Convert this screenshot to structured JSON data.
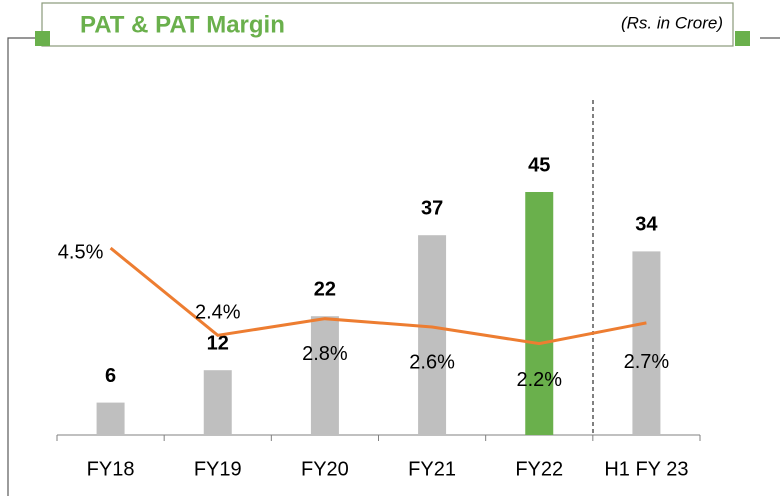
{
  "header": {
    "title": "PAT & PAT Margin",
    "subtitle": "(Rs. in Crore)"
  },
  "chart_data": {
    "type": "bar_line",
    "categories": [
      "FY18",
      "FY19",
      "FY20",
      "FY21",
      "FY22",
      "H1 FY 23"
    ],
    "series": [
      {
        "type": "bar",
        "values": [
          6,
          12,
          22,
          37,
          45,
          34
        ],
        "colors": [
          "#bfbfbf",
          "#bfbfbf",
          "#bfbfbf",
          "#bfbfbf",
          "#6ab04c",
          "#bfbfbf"
        ]
      },
      {
        "type": "line",
        "axis": "y2",
        "color": "#ed7d31",
        "values": [
          4.5,
          2.4,
          2.8,
          2.6,
          2.2,
          2.7
        ],
        "value_labels": [
          "4.5%",
          "2.4%",
          "2.8%",
          "2.6%",
          "2.2%",
          "2.7%"
        ]
      }
    ],
    "ylim": [
      0,
      60
    ],
    "y2lim": [
      0,
      7.8
    ]
  }
}
